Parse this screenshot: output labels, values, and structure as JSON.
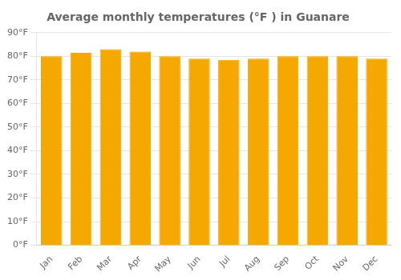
{
  "chart_data": {
    "type": "bar",
    "title": "Average monthly temperatures (°F ) in Guanare",
    "categories": [
      "Jan",
      "Feb",
      "Mar",
      "Apr",
      "May",
      "Jun",
      "Jul",
      "Aug",
      "Sep",
      "Oct",
      "Nov",
      "Dec"
    ],
    "values": [
      80.0,
      81.5,
      83.0,
      82.0,
      80.0,
      79.0,
      78.5,
      79.0,
      80.0,
      80.0,
      80.0,
      79.0
    ],
    "color": "#F5A800",
    "ylim": [
      0,
      90
    ],
    "yticks": [
      {
        "value": 0,
        "label": "0°F"
      },
      {
        "value": 10,
        "label": "10°F"
      },
      {
        "value": 20,
        "label": "20°F"
      },
      {
        "value": 30,
        "label": "30°F"
      },
      {
        "value": 40,
        "label": "40°F"
      },
      {
        "value": 50,
        "label": "50°F"
      },
      {
        "value": 60,
        "label": "60°F"
      },
      {
        "value": 70,
        "label": "70°F"
      },
      {
        "value": 80,
        "label": "80°F"
      },
      {
        "value": 90,
        "label": "90°F"
      }
    ],
    "grid": true
  }
}
